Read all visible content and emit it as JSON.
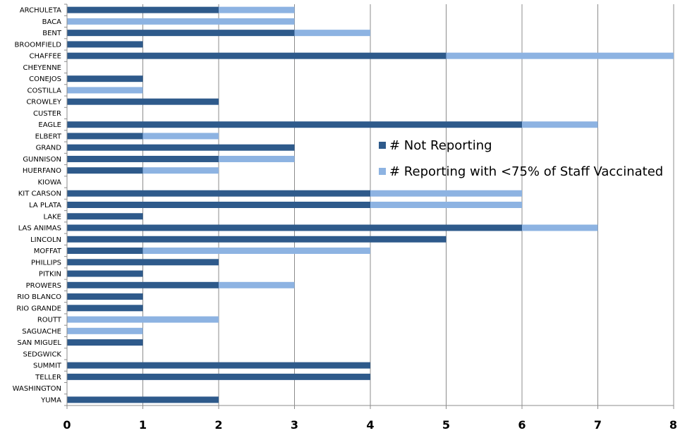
{
  "chart_data": {
    "type": "bar",
    "orientation": "horizontal",
    "stacked": true,
    "categories": [
      "ARCHULETA",
      "BACA",
      "BENT",
      "BROOMFIELD",
      "CHAFFEE",
      "CHEYENNE",
      "CONEJOS",
      "COSTILLA",
      "CROWLEY",
      "CUSTER",
      "EAGLE",
      "ELBERT",
      "GRAND",
      "GUNNISON",
      "HUERFANO",
      "KIOWA",
      "KIT CARSON",
      "LA PLATA",
      "LAKE",
      "LAS ANIMAS",
      "LINCOLN",
      "MOFFAT",
      "PHILLIPS",
      "PITKIN",
      "PROWERS",
      "RIO BLANCO",
      "RIO GRANDE",
      "ROUTT",
      "SAGUACHE",
      "SAN MIGUEL",
      "SEDGWICK",
      "SUMMIT",
      "TELLER",
      "WASHINGTON",
      "YUMA"
    ],
    "series": [
      {
        "name": "# Not Reporting",
        "color": "#2e5a8b",
        "values": [
          2,
          0,
          3,
          1,
          5,
          0,
          1,
          0,
          2,
          0,
          6,
          1,
          3,
          2,
          1,
          0,
          4,
          4,
          1,
          6,
          5,
          1,
          2,
          1,
          2,
          1,
          1,
          0,
          0,
          1,
          0,
          4,
          4,
          0,
          2
        ]
      },
      {
        "name": "# Reporting with <75% of Staff Vaccinated",
        "color": "#8db3e2",
        "values": [
          1,
          3,
          1,
          0,
          3,
          0,
          0,
          1,
          0,
          0,
          1,
          1,
          0,
          1,
          1,
          0,
          2,
          2,
          0,
          1,
          0,
          3,
          0,
          0,
          1,
          0,
          0,
          2,
          1,
          0,
          0,
          0,
          0,
          0,
          0
        ]
      }
    ],
    "xlim": [
      0,
      8
    ],
    "x_ticks": [
      "0",
      "1",
      "2",
      "3",
      "4",
      "5",
      "6",
      "7",
      "8"
    ],
    "grid": true,
    "legend_position": "right"
  }
}
